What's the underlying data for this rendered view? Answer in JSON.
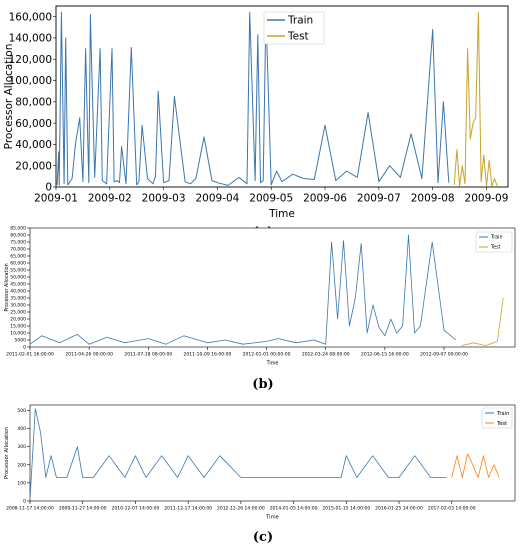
{
  "chart_data": [
    {
      "type": "line",
      "caption": "(a)",
      "xlabel": "Time",
      "ylabel": "Processor Allocation",
      "xticks": [
        "2009-01",
        "2009-02",
        "2009-03",
        "2009-04",
        "2009-05",
        "2009-06",
        "2009-07",
        "2009-08",
        "2009-09"
      ],
      "yticks": [
        "0",
        "20,000",
        "40,000",
        "60,000",
        "80,000",
        "100,000",
        "120,000",
        "140,000",
        "160,000"
      ],
      "ylim": [
        0,
        170000
      ],
      "legend_position": "top-center",
      "series": [
        {
          "name": "Train",
          "color": "#3b76af",
          "x": [
            0.02,
            0.05,
            0.06,
            0.1,
            0.15,
            0.18,
            0.22,
            0.3,
            0.36,
            0.44,
            0.5,
            0.55,
            0.61,
            0.64,
            0.66,
            0.72,
            0.82,
            0.86,
            0.94,
            1.04,
            1.08,
            1.14,
            1.18,
            1.22,
            1.3,
            1.4,
            1.5,
            1.54,
            1.6,
            1.7,
            1.8,
            1.85,
            1.9,
            2.0,
            2.1,
            2.2,
            2.4,
            2.5,
            2.6,
            2.75,
            2.9,
            3.0,
            3.2,
            3.4,
            3.55,
            3.6,
            3.7,
            3.75,
            3.8,
            3.85,
            3.9,
            4.0,
            4.1,
            4.2,
            4.4,
            4.6,
            4.8,
            5.0,
            5.2,
            5.4,
            5.6,
            5.8,
            6.0,
            6.2,
            6.4,
            6.6,
            6.8,
            7.0,
            7.1,
            7.2,
            7.3
          ],
          "y": [
            2000,
            33000,
            1500,
            164000,
            3000,
            140000,
            2000,
            8000,
            40000,
            65000,
            5000,
            130000,
            4000,
            162000,
            120000,
            9000,
            130000,
            6000,
            3000,
            130000,
            5000,
            6000,
            4000,
            38000,
            3000,
            131000,
            2000,
            5000,
            58000,
            8000,
            3000,
            10000,
            90000,
            4000,
            6000,
            85000,
            5000,
            3000,
            8000,
            47000,
            6000,
            4000,
            1500,
            9000,
            3000,
            164000,
            6000,
            143000,
            4000,
            6000,
            164000,
            2000,
            15000,
            5000,
            12000,
            8000,
            7000,
            58000,
            6000,
            15000,
            9000,
            70000,
            5000,
            20000,
            9000,
            50000,
            8000,
            148000,
            4000,
            80000,
            4000
          ]
        },
        {
          "name": "Test",
          "color": "#c8a42a",
          "x": [
            7.4,
            7.45,
            7.5,
            7.55,
            7.6,
            7.65,
            7.7,
            7.75,
            7.8,
            7.85,
            7.9,
            7.95,
            8.0,
            8.05,
            8.1,
            8.15,
            8.2
          ],
          "y": [
            2000,
            35000,
            1000,
            20000,
            3000,
            130000,
            45000,
            60000,
            65000,
            164000,
            5000,
            30000,
            1000,
            25000,
            500,
            8000,
            1000
          ]
        }
      ]
    },
    {
      "type": "line",
      "caption": "(b)",
      "xlabel": "Time",
      "ylabel": "Processor Allocation",
      "xticks": [
        "2011-02-01 16:00:00",
        "2011-04-26 00:00:00",
        "2011-07-18 08:00:00",
        "2011-10-09 16:00:00",
        "2012-01-01 00:00:00",
        "2012-03-24 08:00:00",
        "2012-06-15 16:00:00",
        "2012-09-07 00:00:00"
      ],
      "yticks": [
        "0",
        "5000",
        "10,000",
        "15,000",
        "20,000",
        "25,000",
        "30,000",
        "35,000",
        "40,000",
        "45,000",
        "50,000",
        "55,000",
        "60,000",
        "65,000",
        "70,000",
        "75,000",
        "80,000",
        "85,000"
      ],
      "ylim": [
        0,
        85000
      ],
      "legend_position": "top-right",
      "series": [
        {
          "name": "Train",
          "color": "#3b76af",
          "x": [
            0.0,
            0.2,
            0.5,
            0.8,
            1.0,
            1.3,
            1.6,
            2.0,
            2.3,
            2.6,
            3.0,
            3.3,
            3.6,
            4.0,
            4.2,
            4.5,
            4.8,
            5.0,
            5.1,
            5.2,
            5.3,
            5.4,
            5.5,
            5.6,
            5.7,
            5.8,
            5.9,
            6.0,
            6.1,
            6.2,
            6.3,
            6.4,
            6.5,
            6.6,
            6.8,
            7.0,
            7.2
          ],
          "y": [
            2000,
            8000,
            3000,
            9000,
            2000,
            7000,
            3000,
            6000,
            2000,
            8000,
            3000,
            5000,
            2000,
            4000,
            6000,
            3000,
            5000,
            2000,
            75000,
            20000,
            76000,
            15000,
            35000,
            74000,
            10000,
            30000,
            14000,
            8000,
            20000,
            10000,
            15000,
            80000,
            10000,
            15000,
            75000,
            12000,
            5000
          ]
        },
        {
          "name": "Test",
          "color": "#c8a42a",
          "x": [
            7.3,
            7.5,
            7.7,
            7.9,
            8.0
          ],
          "y": [
            1000,
            3000,
            1000,
            4000,
            35000
          ]
        }
      ]
    },
    {
      "type": "line",
      "caption": "(c)",
      "xlabel": "Time",
      "ylabel": "Processor Allocation",
      "xticks": [
        "2008-11-17 14:00:00",
        "2009-11-27 14:00:00",
        "2010-12-07 14:00:00",
        "2011-12-17 14:00:00",
        "2012-12-26 14:00:00",
        "2014-01-05 14:00:00",
        "2015-01-15 14:00:00",
        "2016-01-25 14:00:00",
        "2017-02-03 14:00:00"
      ],
      "yticks": [
        "0",
        "100",
        "200",
        "300",
        "400",
        "500"
      ],
      "ylim": [
        0,
        530
      ],
      "legend_position": "top-right",
      "series": [
        {
          "name": "Train",
          "color": "#3b76af",
          "x": [
            0.0,
            0.1,
            0.2,
            0.3,
            0.4,
            0.5,
            0.7,
            0.9,
            1.0,
            1.2,
            1.5,
            1.8,
            2.0,
            2.2,
            2.5,
            2.8,
            3.0,
            3.3,
            3.6,
            4.0,
            4.3,
            4.6,
            5.0,
            5.3,
            5.6,
            5.9,
            6.0,
            6.2,
            6.5,
            6.8,
            7.0,
            7.3,
            7.6,
            7.9
          ],
          "y": [
            10,
            510,
            380,
            130,
            250,
            130,
            130,
            300,
            130,
            130,
            250,
            130,
            250,
            130,
            250,
            130,
            250,
            130,
            250,
            130,
            130,
            130,
            130,
            130,
            130,
            130,
            250,
            130,
            250,
            130,
            130,
            250,
            130,
            130
          ]
        },
        {
          "name": "Test",
          "color": "#ff7f0e",
          "x": [
            8.0,
            8.1,
            8.2,
            8.3,
            8.4,
            8.5,
            8.6,
            8.7,
            8.8,
            8.9
          ],
          "y": [
            130,
            250,
            130,
            260,
            200,
            130,
            250,
            130,
            200,
            130
          ]
        }
      ]
    }
  ]
}
